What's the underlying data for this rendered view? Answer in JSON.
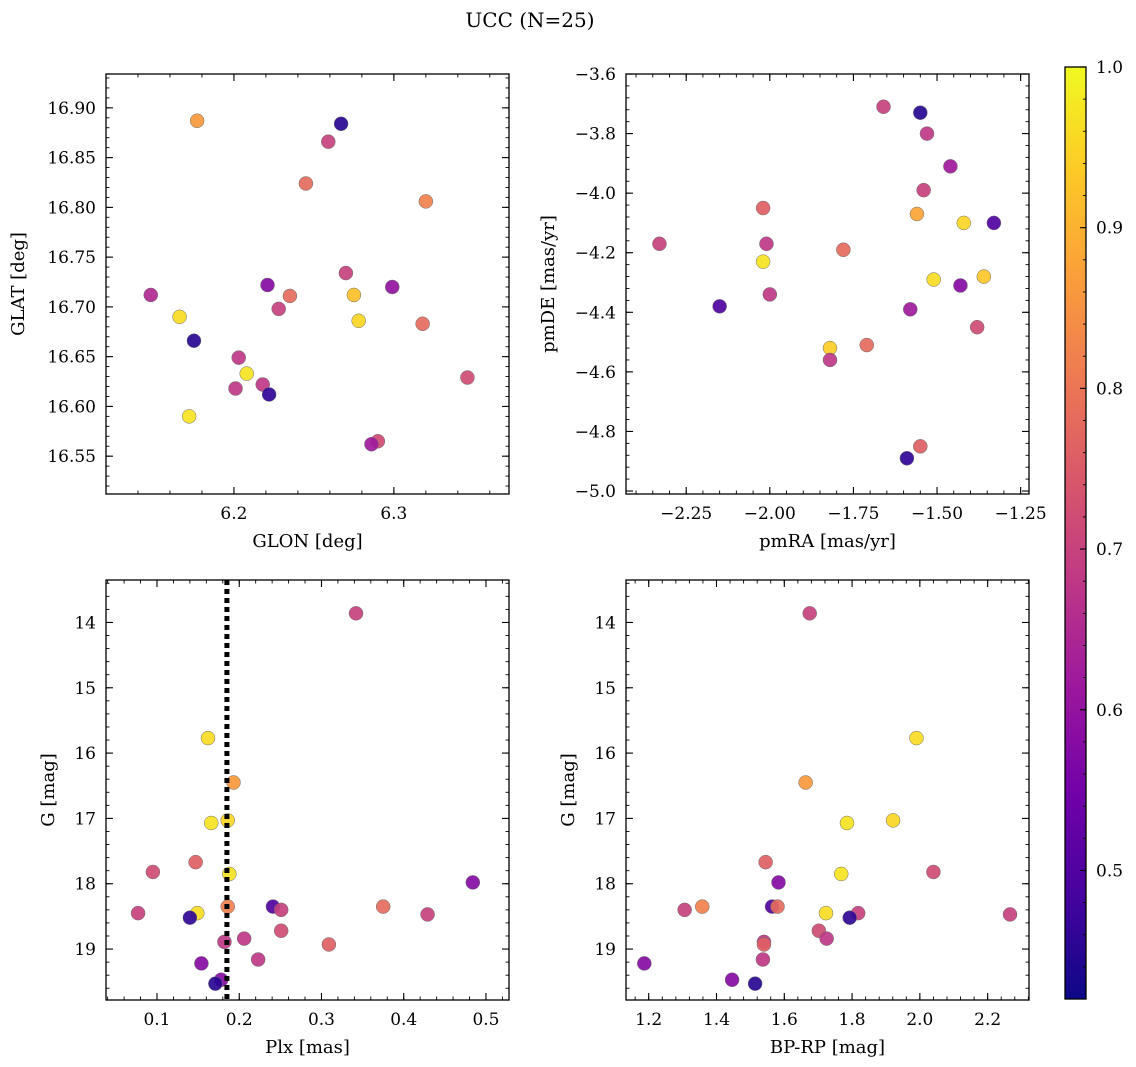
{
  "title": "UCC (N=25)",
  "colorbar": {
    "colormap": "plasma",
    "range": [
      0.42,
      1.0
    ],
    "ticks": [
      "0.5",
      "0.6",
      "0.7",
      "0.8",
      "0.9",
      "1.0"
    ],
    "tick_values": [
      0.5,
      0.6,
      0.7,
      0.8,
      0.9,
      1.0
    ],
    "stops": [
      "#0d0887",
      "#46039f",
      "#7201a8",
      "#9c179e",
      "#bd3786",
      "#d8576b",
      "#ed7953",
      "#fb9f3a",
      "#fdca26",
      "#f0f921"
    ]
  },
  "chart_data": [
    {
      "type": "scatter",
      "xlabel": "GLON [deg]",
      "ylabel": "GLAT [deg]",
      "xlim": [
        6.12,
        6.372
      ],
      "ylim": [
        16.512,
        16.934
      ],
      "xticks": [
        "6.2",
        "6.3"
      ],
      "xtick_values": [
        6.2,
        6.3
      ],
      "yticks": [
        "16.55",
        "16.60",
        "16.65",
        "16.70",
        "16.75",
        "16.80",
        "16.85",
        "16.90"
      ],
      "ytick_values": [
        16.55,
        16.6,
        16.65,
        16.7,
        16.75,
        16.8,
        16.85,
        16.9
      ],
      "points": [
        {
          "x": 6.177,
          "y": 16.887,
          "c": 0.86
        },
        {
          "x": 6.267,
          "y": 16.884,
          "c": 0.45
        },
        {
          "x": 6.259,
          "y": 16.866,
          "c": 0.7
        },
        {
          "x": 6.245,
          "y": 16.824,
          "c": 0.78
        },
        {
          "x": 6.32,
          "y": 16.806,
          "c": 0.82
        },
        {
          "x": 6.27,
          "y": 16.734,
          "c": 0.7
        },
        {
          "x": 6.221,
          "y": 16.722,
          "c": 0.58
        },
        {
          "x": 6.299,
          "y": 16.72,
          "c": 0.6
        },
        {
          "x": 6.148,
          "y": 16.712,
          "c": 0.65
        },
        {
          "x": 6.235,
          "y": 16.711,
          "c": 0.78
        },
        {
          "x": 6.275,
          "y": 16.712,
          "c": 0.92
        },
        {
          "x": 6.228,
          "y": 16.698,
          "c": 0.7
        },
        {
          "x": 6.166,
          "y": 16.69,
          "c": 0.96
        },
        {
          "x": 6.278,
          "y": 16.686,
          "c": 0.95
        },
        {
          "x": 6.318,
          "y": 16.683,
          "c": 0.78
        },
        {
          "x": 6.175,
          "y": 16.666,
          "c": 0.45
        },
        {
          "x": 6.203,
          "y": 16.649,
          "c": 0.68
        },
        {
          "x": 6.208,
          "y": 16.633,
          "c": 0.97
        },
        {
          "x": 6.346,
          "y": 16.629,
          "c": 0.72
        },
        {
          "x": 6.218,
          "y": 16.622,
          "c": 0.68
        },
        {
          "x": 6.201,
          "y": 16.618,
          "c": 0.68
        },
        {
          "x": 6.222,
          "y": 16.612,
          "c": 0.46
        },
        {
          "x": 6.172,
          "y": 16.59,
          "c": 0.97
        },
        {
          "x": 6.29,
          "y": 16.565,
          "c": 0.72
        },
        {
          "x": 6.286,
          "y": 16.562,
          "c": 0.62
        }
      ]
    },
    {
      "type": "scatter",
      "xlabel": "pmRA [mas/yr]",
      "ylabel": "pmDE [mas/yr]",
      "xlim": [
        -2.43,
        -1.225
      ],
      "ylim": [
        -5.01,
        -3.6
      ],
      "xticks": [
        "−2.25",
        "−2.00",
        "−1.75",
        "−1.50",
        "−1.25"
      ],
      "xtick_values": [
        -2.25,
        -2.0,
        -1.75,
        -1.5,
        -1.25
      ],
      "yticks": [
        "−5.0",
        "−4.8",
        "−4.6",
        "−4.4",
        "−4.2",
        "−4.0",
        "−3.8",
        "−3.6"
      ],
      "ytick_values": [
        -5.0,
        -4.8,
        -4.6,
        -4.4,
        -4.2,
        -4.0,
        -3.8,
        -3.6
      ],
      "points": [
        {
          "x": -1.66,
          "y": -3.71,
          "c": 0.7
        },
        {
          "x": -1.55,
          "y": -3.73,
          "c": 0.45
        },
        {
          "x": -1.53,
          "y": -3.8,
          "c": 0.68
        },
        {
          "x": -1.46,
          "y": -3.91,
          "c": 0.62
        },
        {
          "x": -1.54,
          "y": -3.99,
          "c": 0.7
        },
        {
          "x": -2.02,
          "y": -4.05,
          "c": 0.76
        },
        {
          "x": -1.56,
          "y": -4.07,
          "c": 0.88
        },
        {
          "x": -1.42,
          "y": -4.1,
          "c": 0.95
        },
        {
          "x": -1.33,
          "y": -4.1,
          "c": 0.5
        },
        {
          "x": -2.33,
          "y": -4.17,
          "c": 0.7
        },
        {
          "x": -2.01,
          "y": -4.17,
          "c": 0.68
        },
        {
          "x": -1.78,
          "y": -4.19,
          "c": 0.78
        },
        {
          "x": -2.02,
          "y": -4.23,
          "c": 0.97
        },
        {
          "x": -1.36,
          "y": -4.28,
          "c": 0.93
        },
        {
          "x": -1.51,
          "y": -4.29,
          "c": 0.96
        },
        {
          "x": -1.43,
          "y": -4.31,
          "c": 0.58
        },
        {
          "x": -2.0,
          "y": -4.34,
          "c": 0.68
        },
        {
          "x": -2.15,
          "y": -4.38,
          "c": 0.5
        },
        {
          "x": -1.58,
          "y": -4.39,
          "c": 0.62
        },
        {
          "x": -1.38,
          "y": -4.45,
          "c": 0.72
        },
        {
          "x": -1.71,
          "y": -4.51,
          "c": 0.78
        },
        {
          "x": -1.82,
          "y": -4.52,
          "c": 0.94
        },
        {
          "x": -1.82,
          "y": -4.56,
          "c": 0.68
        },
        {
          "x": -1.55,
          "y": -4.85,
          "c": 0.76
        },
        {
          "x": -1.59,
          "y": -4.89,
          "c": 0.46
        }
      ]
    },
    {
      "type": "scatter",
      "xlabel": "Plx [mas]",
      "ylabel": "G [mag]",
      "xlim": [
        0.038,
        0.528
      ],
      "ylim": [
        19.78,
        13.35
      ],
      "y_inverted": true,
      "vline": {
        "x": 0.185,
        "style": "dotted",
        "color": "#000000"
      },
      "xticks": [
        "0.1",
        "0.2",
        "0.3",
        "0.4",
        "0.5"
      ],
      "xtick_values": [
        0.1,
        0.2,
        0.3,
        0.4,
        0.5
      ],
      "yticks": [
        "14",
        "15",
        "16",
        "17",
        "18",
        "19"
      ],
      "ytick_values": [
        14,
        15,
        16,
        17,
        18,
        19
      ],
      "points": [
        {
          "x": 0.342,
          "y": 13.86,
          "c": 0.7
        },
        {
          "x": 0.162,
          "y": 15.77,
          "c": 0.96
        },
        {
          "x": 0.193,
          "y": 16.45,
          "c": 0.86
        },
        {
          "x": 0.166,
          "y": 17.07,
          "c": 0.97
        },
        {
          "x": 0.186,
          "y": 17.03,
          "c": 0.95
        },
        {
          "x": 0.147,
          "y": 17.67,
          "c": 0.76
        },
        {
          "x": 0.095,
          "y": 17.82,
          "c": 0.72
        },
        {
          "x": 0.188,
          "y": 17.85,
          "c": 0.97
        },
        {
          "x": 0.484,
          "y": 17.98,
          "c": 0.58
        },
        {
          "x": 0.241,
          "y": 18.35,
          "c": 0.5
        },
        {
          "x": 0.186,
          "y": 18.35,
          "c": 0.82
        },
        {
          "x": 0.375,
          "y": 18.35,
          "c": 0.78
        },
        {
          "x": 0.251,
          "y": 18.4,
          "c": 0.7
        },
        {
          "x": 0.077,
          "y": 18.45,
          "c": 0.7
        },
        {
          "x": 0.149,
          "y": 18.45,
          "c": 0.96
        },
        {
          "x": 0.429,
          "y": 18.47,
          "c": 0.7
        },
        {
          "x": 0.14,
          "y": 18.52,
          "c": 0.46
        },
        {
          "x": 0.251,
          "y": 18.72,
          "c": 0.72
        },
        {
          "x": 0.206,
          "y": 18.84,
          "c": 0.68
        },
        {
          "x": 0.182,
          "y": 18.89,
          "c": 0.68
        },
        {
          "x": 0.309,
          "y": 18.93,
          "c": 0.76
        },
        {
          "x": 0.223,
          "y": 19.16,
          "c": 0.68
        },
        {
          "x": 0.154,
          "y": 19.22,
          "c": 0.58
        },
        {
          "x": 0.178,
          "y": 19.47,
          "c": 0.58
        },
        {
          "x": 0.171,
          "y": 19.53,
          "c": 0.45
        }
      ]
    },
    {
      "type": "scatter",
      "xlabel": "BP-RP [mag]",
      "ylabel": "G [mag]",
      "xlim": [
        1.133,
        2.322
      ],
      "ylim": [
        19.78,
        13.35
      ],
      "y_inverted": true,
      "xticks": [
        "1.2",
        "1.4",
        "1.6",
        "1.8",
        "2.0",
        "2.2"
      ],
      "xtick_values": [
        1.2,
        1.4,
        1.6,
        1.8,
        2.0,
        2.2
      ],
      "yticks": [
        "14",
        "15",
        "16",
        "17",
        "18",
        "19"
      ],
      "ytick_values": [
        14,
        15,
        16,
        17,
        18,
        19
      ],
      "points": [
        {
          "x": 1.675,
          "y": 13.86,
          "c": 0.7
        },
        {
          "x": 1.99,
          "y": 15.77,
          "c": 0.96
        },
        {
          "x": 1.663,
          "y": 16.45,
          "c": 0.86
        },
        {
          "x": 1.785,
          "y": 17.07,
          "c": 0.97
        },
        {
          "x": 1.921,
          "y": 17.03,
          "c": 0.95
        },
        {
          "x": 1.545,
          "y": 17.67,
          "c": 0.76
        },
        {
          "x": 2.04,
          "y": 17.82,
          "c": 0.72
        },
        {
          "x": 1.768,
          "y": 17.85,
          "c": 0.97
        },
        {
          "x": 1.583,
          "y": 17.98,
          "c": 0.58
        },
        {
          "x": 1.564,
          "y": 18.35,
          "c": 0.5
        },
        {
          "x": 1.358,
          "y": 18.35,
          "c": 0.82
        },
        {
          "x": 1.58,
          "y": 18.35,
          "c": 0.78
        },
        {
          "x": 1.306,
          "y": 18.4,
          "c": 0.7
        },
        {
          "x": 1.818,
          "y": 18.45,
          "c": 0.7
        },
        {
          "x": 1.723,
          "y": 18.45,
          "c": 0.96
        },
        {
          "x": 2.266,
          "y": 18.47,
          "c": 0.7
        },
        {
          "x": 1.793,
          "y": 18.52,
          "c": 0.46
        },
        {
          "x": 1.702,
          "y": 18.72,
          "c": 0.72
        },
        {
          "x": 1.725,
          "y": 18.84,
          "c": 0.68
        },
        {
          "x": 1.54,
          "y": 18.89,
          "c": 0.68
        },
        {
          "x": 1.54,
          "y": 18.93,
          "c": 0.76
        },
        {
          "x": 1.537,
          "y": 19.16,
          "c": 0.68
        },
        {
          "x": 1.187,
          "y": 19.22,
          "c": 0.58
        },
        {
          "x": 1.446,
          "y": 19.47,
          "c": 0.58
        },
        {
          "x": 1.514,
          "y": 19.53,
          "c": 0.45
        }
      ]
    }
  ]
}
